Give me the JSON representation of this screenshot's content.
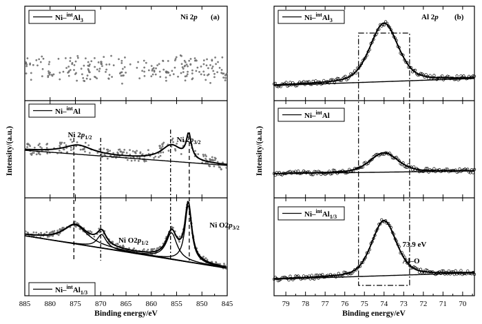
{
  "chart_data": [
    {
      "type": "line",
      "panel_label": "(a)",
      "element_label": "Ni 2p",
      "xlabel": "Binding energy/eV",
      "ylabel": "Intensity/(a.u.)",
      "xlim": [
        885,
        845
      ],
      "x_ticks": [
        885,
        880,
        875,
        870,
        865,
        860,
        855,
        850,
        845
      ],
      "x_tick_labels": [
        "885",
        "880",
        "875",
        "870",
        "865",
        "860",
        "855",
        "850",
        "845"
      ],
      "series": [
        {
          "name": "Ni–intAl3",
          "legend_main": "Ni–",
          "legend_sup": "int",
          "legend_tail": "Al",
          "legend_sub": "3",
          "peaks": [],
          "annotations": []
        },
        {
          "name": "Ni–intAl",
          "legend_main": "Ni–",
          "legend_sup": "int",
          "legend_tail": "Al",
          "legend_sub": "",
          "peaks": [
            {
              "center": 856.0,
              "fwhm": 5.0,
              "height": 0.35
            },
            {
              "center": 852.6,
              "fwhm": 1.2,
              "height": 0.55
            },
            {
              "center": 874.5,
              "fwhm": 7.0,
              "height": 0.2
            }
          ],
          "annotations": [
            {
              "main": "Ni 2",
              "ital": "p",
              "sub": "1/2",
              "x": 876.5
            },
            {
              "main": "Ni 2",
              "ital": "p",
              "sub": "3/2",
              "x": 855.0
            }
          ]
        },
        {
          "name": "Ni–intAl1/3",
          "legend_main": "Ni–",
          "legend_sup": "int",
          "legend_tail": "Al",
          "legend_sub": "1/3",
          "peaks": [
            {
              "center": 852.7,
              "fwhm": 1.6,
              "height": 0.75
            },
            {
              "center": 856.0,
              "fwhm": 2.6,
              "height": 0.35
            },
            {
              "center": 869.8,
              "fwhm": 2.2,
              "height": 0.18
            },
            {
              "center": 875.0,
              "fwhm": 6.0,
              "height": 0.25
            }
          ],
          "annotations": [
            {
              "main": "Ni O2",
              "ital": "p",
              "sub": "1/2",
              "x": 866.5
            },
            {
              "main": "Ni O2",
              "ital": "p",
              "sub": "3/2",
              "x": 848.5
            }
          ]
        }
      ],
      "reference_lines": [
        875.3,
        870.0,
        856.2,
        852.5
      ]
    },
    {
      "type": "line",
      "panel_label": "(b)",
      "element_label": "Al 2p",
      "xlabel": "Binding energy/eV",
      "ylabel": "Intensity/(a.u.)",
      "xlim": [
        79.6,
        69.4
      ],
      "x_ticks": [
        79,
        78,
        77,
        76,
        75,
        74,
        73,
        72,
        71,
        70
      ],
      "x_tick_labels": [
        "79",
        "78",
        "77",
        "76",
        "75",
        "74",
        "73",
        "72",
        "71",
        "70"
      ],
      "series": [
        {
          "name": "Ni–intAl3",
          "legend_main": "Ni–",
          "legend_sup": "int",
          "legend_tail": "Al",
          "legend_sub": "3",
          "peaks": [
            {
              "center": 74.0,
              "fwhm": 1.7,
              "height": 0.8
            }
          ],
          "annotations": []
        },
        {
          "name": "Ni–intAl",
          "legend_main": "Ni–",
          "legend_sup": "int",
          "legend_tail": "Al",
          "legend_sub": "",
          "peaks": [
            {
              "center": 74.0,
              "fwhm": 1.7,
              "height": 0.5
            }
          ],
          "annotations": []
        },
        {
          "name": "Ni–intAl1/3",
          "legend_main": "Ni–",
          "legend_sup": "int",
          "legend_tail": "Al",
          "legend_sub": "1/3",
          "peaks": [
            {
              "center": 74.0,
              "fwhm": 1.5,
              "height": 0.78
            }
          ],
          "annotations": [
            {
              "main": "73.9 eV",
              "ital": "",
              "sub": "",
              "x": 72.5
            },
            {
              "main": "Al–O",
              "ital": "",
              "sub": "",
              "x": 72.5
            }
          ]
        }
      ],
      "reference_box": [
        75.3,
        72.7
      ]
    }
  ]
}
